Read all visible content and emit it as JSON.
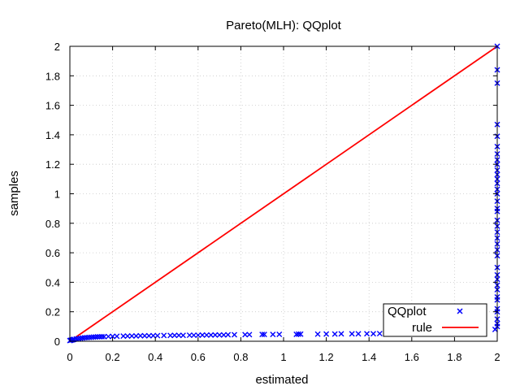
{
  "chart_data": {
    "type": "scatter",
    "title": "Pareto(MLH): QQplot",
    "xlabel": "estimated",
    "ylabel": "samples",
    "xlim": [
      0,
      2
    ],
    "ylim": [
      0,
      2
    ],
    "grid": true,
    "legend": "bottom-right",
    "x_ticks": [
      "0",
      "0.2",
      "0.4",
      "0.6",
      "0.8",
      "1",
      "1.2",
      "1.4",
      "1.6",
      "1.8",
      "2"
    ],
    "y_ticks": [
      "0",
      "0.2",
      "0.4",
      "0.6",
      "0.8",
      "1",
      "1.2",
      "1.4",
      "1.6",
      "1.8",
      "2"
    ],
    "series": [
      {
        "name": "QQplot",
        "kind": "scatter",
        "marker": "x",
        "color": "#0000ff",
        "x": [
          0.0,
          0.005,
          0.01,
          0.015,
          0.02,
          0.03,
          0.04,
          0.05,
          0.06,
          0.07,
          0.08,
          0.09,
          0.1,
          0.11,
          0.12,
          0.13,
          0.14,
          0.15,
          0.16,
          0.18,
          0.2,
          0.22,
          0.25,
          0.27,
          0.29,
          0.31,
          0.33,
          0.35,
          0.37,
          0.39,
          0.41,
          0.44,
          0.47,
          0.49,
          0.51,
          0.53,
          0.56,
          0.58,
          0.6,
          0.62,
          0.64,
          0.66,
          0.68,
          0.7,
          0.72,
          0.74,
          0.77,
          0.82,
          0.84,
          0.9,
          0.91,
          0.95,
          0.98,
          1.06,
          1.07,
          1.08,
          1.16,
          1.2,
          1.24,
          1.27,
          1.32,
          1.35,
          1.39,
          1.42,
          1.45,
          1.5,
          1.55,
          1.57,
          1.62,
          1.64,
          1.66,
          1.69,
          1.74,
          1.79,
          1.84,
          1.87,
          1.89,
          1.99,
          2.0,
          2.0,
          2.0,
          2.0,
          2.0,
          2.0,
          2.0,
          2.0,
          2.0,
          2.0,
          2.0,
          2.0,
          2.0,
          2.0,
          2.0,
          2.0,
          2.0,
          2.0,
          2.0,
          2.0,
          2.0,
          2.0,
          2.0,
          2.0,
          2.0,
          2.0,
          2.0,
          2.0,
          2.0,
          2.0,
          2.0,
          2.0,
          2.0,
          2.0,
          2.0,
          2.0,
          2.0
        ],
        "y": [
          0.005,
          0.007,
          0.009,
          0.011,
          0.013,
          0.016,
          0.018,
          0.02,
          0.022,
          0.024,
          0.025,
          0.026,
          0.027,
          0.028,
          0.029,
          0.03,
          0.03,
          0.031,
          0.031,
          0.032,
          0.033,
          0.034,
          0.035,
          0.035,
          0.036,
          0.036,
          0.037,
          0.037,
          0.037,
          0.038,
          0.038,
          0.039,
          0.039,
          0.04,
          0.04,
          0.04,
          0.041,
          0.041,
          0.041,
          0.042,
          0.042,
          0.042,
          0.043,
          0.043,
          0.043,
          0.044,
          0.044,
          0.045,
          0.045,
          0.046,
          0.046,
          0.046,
          0.047,
          0.047,
          0.048,
          0.048,
          0.048,
          0.049,
          0.049,
          0.05,
          0.05,
          0.05,
          0.051,
          0.051,
          0.052,
          0.053,
          0.054,
          0.055,
          0.056,
          0.057,
          0.058,
          0.06,
          0.062,
          0.065,
          0.068,
          0.07,
          0.072,
          0.08,
          0.1,
          0.15,
          0.2,
          0.28,
          0.35,
          0.42,
          0.5,
          0.58,
          0.66,
          0.74,
          0.82,
          0.88,
          0.95,
          1.0,
          1.03,
          1.07,
          1.1,
          1.13,
          1.16,
          1.2,
          1.23,
          1.27,
          1.32,
          1.39,
          1.47,
          1.75,
          1.84,
          2.0,
          0.3,
          0.45,
          0.62,
          0.78,
          0.9,
          0.12,
          0.22,
          0.38,
          0.7
        ]
      },
      {
        "name": "rule",
        "kind": "line",
        "color": "#ff0000",
        "x": [
          0,
          2
        ],
        "y": [
          0,
          2
        ]
      }
    ]
  }
}
